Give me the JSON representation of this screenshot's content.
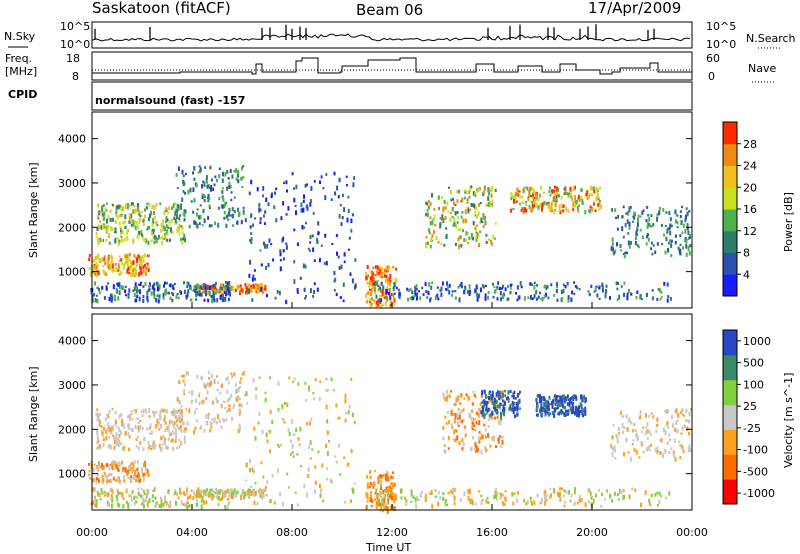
{
  "header": {
    "station": "Saskatoon (fitACF)",
    "beam": "Beam 06",
    "date": "17/Apr/2009"
  },
  "noise_panel": {
    "left_label": "N.Sky",
    "right_label": "N.Search",
    "ticks_left": [
      "10^5",
      "10^0"
    ],
    "ticks_right": [
      "10^5",
      "10^0"
    ]
  },
  "freq_panel": {
    "left_label_1": "Freq.",
    "left_label_2": "[MHz]",
    "right_label": "Nave",
    "ticks_left": [
      "18",
      "8"
    ],
    "ticks_right": [
      "60",
      "0"
    ]
  },
  "cpid_panel": {
    "left_label": "CPID",
    "text": "normalsound (fast) -157"
  },
  "colors": {
    "power": [
      "#1a1aff",
      "#2b50b0",
      "#2e7d6a",
      "#4fb050",
      "#c8e020",
      "#f0c020",
      "#f08a10",
      "#ff2a00"
    ],
    "velocity": [
      "#ff0000",
      "#ff6a00",
      "#ffa020",
      "#c8c8c8",
      "#80d040",
      "#3a8a6a",
      "#2a46c8"
    ]
  },
  "chart_data": [
    {
      "type": "heatmap",
      "title": "Power",
      "ylabel": "Slant Range [km]",
      "xlabel": "",
      "x_ticks": [
        "00:00",
        "04:00",
        "08:00",
        "12:00",
        "16:00",
        "20:00",
        "00:00"
      ],
      "y_ticks": [
        "1000",
        "2000",
        "3000",
        "4000"
      ],
      "ylim": [
        180,
        4600
      ],
      "colorbar": {
        "label": "Power [dB]",
        "ticks": [
          "4",
          "8",
          "12",
          "16",
          "20",
          "24",
          "28"
        ],
        "range": [
          0,
          32
        ]
      },
      "grid": false
    },
    {
      "type": "heatmap",
      "title": "Velocity",
      "ylabel": "Slant Range [km]",
      "xlabel": "Time UT",
      "x_ticks": [
        "00:00",
        "04:00",
        "08:00",
        "12:00",
        "16:00",
        "20:00",
        "00:00"
      ],
      "y_ticks": [
        "1000",
        "2000",
        "3000",
        "4000"
      ],
      "ylim": [
        180,
        4600
      ],
      "colorbar": {
        "label": "Velocity [m s^-1]",
        "ticks": [
          "1000",
          "500",
          "100",
          "25",
          "-25",
          "-100",
          "-500",
          "-1000"
        ]
      },
      "grid": false
    }
  ]
}
